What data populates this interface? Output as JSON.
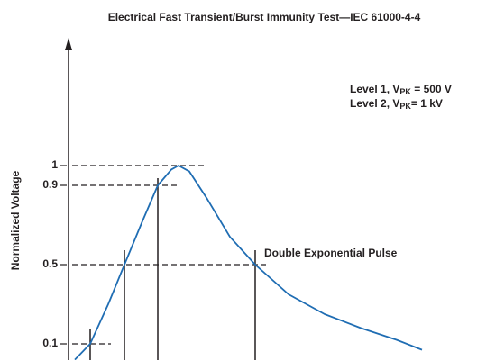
{
  "chart_data": {
    "type": "line",
    "title": "Electrical Fast Transient/Burst Immunity Test—IEC 61000-4-4",
    "y_label": "Normalized Voltage",
    "annotations": [
      {
        "parts": [
          "Level 1, V",
          "PK",
          " = 500 V"
        ]
      },
      {
        "parts": [
          "Level 2, V",
          "PK",
          "= 1 kV"
        ]
      },
      {
        "parts": [
          "Double Exponential Pulse"
        ]
      }
    ],
    "x": [
      1.75,
      6,
      11,
      15.5,
      20.5,
      24.75,
      28.5,
      30.5,
      33.5,
      38.5,
      44.75,
      51.75,
      61,
      71,
      81,
      91,
      98
    ],
    "series": [
      {
        "color": "#1f6db3",
        "values": [
          0.02,
          0.1,
          0.3,
          0.5,
          0.72,
          0.9,
          0.98,
          1.0,
          0.97,
          0.83,
          0.64,
          0.5,
          0.35,
          0.25,
          0.18,
          0.12,
          0.07
        ]
      }
    ],
    "xlim": [
      0,
      110
    ],
    "ylim": [
      0,
      1.6
    ],
    "yticks": [
      0.1,
      0.5,
      0.9,
      1
    ]
  }
}
